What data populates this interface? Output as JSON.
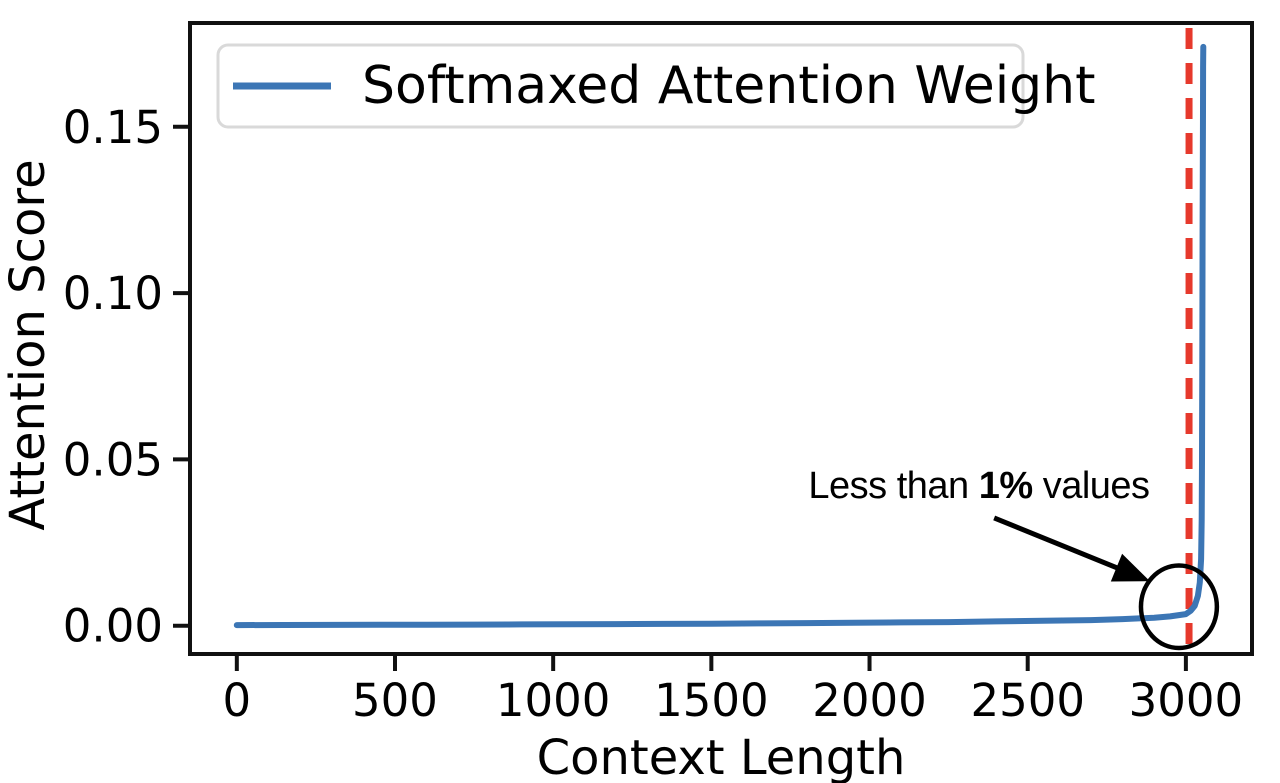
{
  "figure": {
    "background": "#ffffff",
    "text_color": "#000000",
    "spine_color": "#111111"
  },
  "legend": {
    "label": "Softmaxed Attention Weight",
    "swatch_color": "#3C76B5",
    "border_color": "#d9d9d9"
  },
  "chart_data": {
    "type": "line",
    "title": "",
    "xlabel": "Context Length",
    "ylabel": "Attention Score",
    "xlim": [
      -148,
      3209
    ],
    "ylim": [
      -0.0085,
      0.1812
    ],
    "x_ticks": [
      0,
      500,
      1000,
      1500,
      2000,
      2500,
      3000
    ],
    "x_tick_labels": [
      "0",
      "500",
      "1000",
      "1500",
      "2000",
      "2500",
      "3000"
    ],
    "y_ticks": [
      0,
      0.05,
      0.1,
      0.15
    ],
    "y_tick_labels": [
      "0.00",
      "0.05",
      "0.10",
      "0.15"
    ],
    "grid": false,
    "legend_position": "upper left",
    "series": [
      {
        "name": "Softmaxed Attention Weight",
        "color": "#3C76B5",
        "line_width": 6,
        "x": [
          0,
          150,
          300,
          450,
          600,
          750,
          900,
          1050,
          1200,
          1350,
          1500,
          1650,
          1800,
          1950,
          2100,
          2250,
          2400,
          2550,
          2700,
          2800,
          2900,
          2950,
          3000,
          3015,
          3028,
          3038,
          3044,
          3048,
          3050,
          3051,
          3052,
          3053,
          3054,
          3054.5,
          3055
        ],
        "y": [
          0.0002,
          0.00022,
          0.00025,
          0.00028,
          0.0003,
          0.00035,
          0.0004,
          0.00045,
          0.0005,
          0.00055,
          0.0006,
          0.0007,
          0.0008,
          0.0009,
          0.001,
          0.0011,
          0.0013,
          0.0015,
          0.0017,
          0.002,
          0.0024,
          0.0028,
          0.0035,
          0.0045,
          0.006,
          0.009,
          0.013,
          0.02,
          0.032,
          0.05,
          0.08,
          0.12,
          0.155,
          0.168,
          0.174
        ]
      }
    ],
    "peak_value": 0.174,
    "vline": {
      "x": 3010,
      "color": "#E6392C",
      "style": "dashed",
      "width": 7
    },
    "annotations": {
      "circle": {
        "cx": 2978,
        "cy": 0.0057,
        "rx": 120,
        "ry": 0.0124,
        "color": "#000000",
        "stroke_width": 4.5
      },
      "arrow": {
        "x1": 2394,
        "y1": 0.0324,
        "x2": 2886,
        "y2": 0.0134,
        "color": "#000000",
        "line_width": 5
      },
      "label": {
        "prefix": "Less than ",
        "bold": "1%",
        "suffix": " values",
        "x": 2346,
        "y": 0.0423
      }
    }
  }
}
